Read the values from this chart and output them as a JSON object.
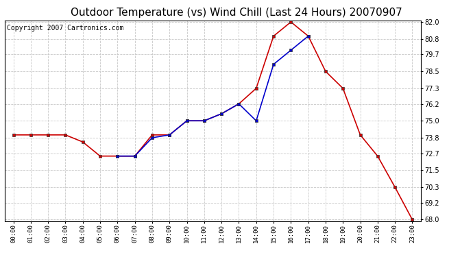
{
  "title": "Outdoor Temperature (vs) Wind Chill (Last 24 Hours) 20070907",
  "copyright": "Copyright 2007 Cartronics.com",
  "hours": [
    "00:00",
    "01:00",
    "02:00",
    "03:00",
    "04:00",
    "05:00",
    "06:00",
    "07:00",
    "08:00",
    "09:00",
    "10:00",
    "11:00",
    "12:00",
    "13:00",
    "14:00",
    "15:00",
    "16:00",
    "17:00",
    "18:00",
    "19:00",
    "20:00",
    "21:00",
    "22:00",
    "23:00"
  ],
  "temp": [
    74.0,
    74.0,
    74.0,
    74.0,
    73.5,
    72.5,
    72.5,
    72.5,
    74.0,
    74.0,
    75.0,
    75.0,
    75.5,
    76.2,
    77.3,
    81.0,
    82.0,
    81.0,
    78.5,
    77.3,
    74.0,
    72.5,
    70.3,
    68.0
  ],
  "windchill": [
    null,
    null,
    null,
    null,
    null,
    null,
    72.5,
    72.5,
    73.8,
    74.0,
    75.0,
    75.0,
    75.5,
    76.2,
    75.0,
    79.0,
    80.0,
    81.0,
    null,
    null,
    null,
    null,
    null,
    null
  ],
  "temp_color": "#cc0000",
  "windchill_color": "#0000cc",
  "bg_color": "#ffffff",
  "grid_color": "#c8c8c8",
  "ylim_min": 68.0,
  "ylim_max": 82.0,
  "yticks": [
    68.0,
    69.2,
    70.3,
    71.5,
    72.7,
    73.8,
    75.0,
    76.2,
    77.3,
    78.5,
    79.7,
    80.8,
    82.0
  ],
  "title_fontsize": 11,
  "copyright_fontsize": 7
}
